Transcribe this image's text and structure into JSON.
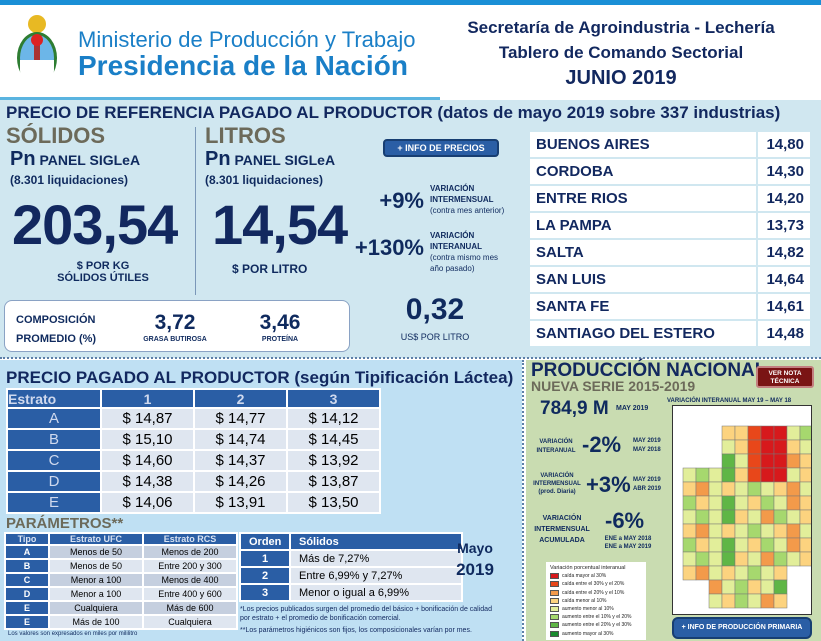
{
  "header": {
    "ministry": "Ministerio de Producción y Trabajo",
    "presidency": "Presidencia de la Nación",
    "secretariat": "Secretaría de Agroindustria - Lechería",
    "board": "Tablero de Comando Sectorial",
    "period": "JUNIO 2019"
  },
  "reference": {
    "title": "PRECIO DE REFERENCIA PAGADO AL PRODUCTOR (datos de mayo 2019 sobre 337 industrias)",
    "solids": {
      "label": "SÓLIDOS",
      "pn": "Pn",
      "panel": "PANEL SIGLeA",
      "count": "(8.301 liquidaciones)",
      "value": "203,54",
      "unit1": "$ POR KG",
      "unit2": "SÓLIDOS ÚTILES"
    },
    "liters": {
      "label": "LITROS",
      "pn": "Pn",
      "panel": "PANEL SIGLeA",
      "count": "(8.301 liquidaciones)",
      "value": "14,54",
      "unit": "$ POR LITRO"
    },
    "info_button": "+ INFO DE PRECIOS",
    "var_month": {
      "value": "+9%",
      "l1": "VARIACIÓN",
      "l2": "INTERMENSUAL",
      "l3": "(contra mes anterior)"
    },
    "var_year": {
      "value": "+130%",
      "l1": "VARIACIÓN",
      "l2": "INTERANUAL",
      "l3": "(contra mismo mes",
      "l4": "año pasado)"
    },
    "usd": {
      "value": "0,32",
      "unit": "US$ POR LITRO"
    },
    "composition": {
      "l1": "COMPOSICIÓN",
      "l2": "PROMEDIO (%)",
      "fat": "3,72",
      "fat_label": "GRASA BUTIROSA",
      "protein": "3,46",
      "protein_label": "PROTEÍNA"
    }
  },
  "provinces": [
    {
      "name": "BUENOS AIRES",
      "value": "14,80"
    },
    {
      "name": "CORDOBA",
      "value": "14,30"
    },
    {
      "name": "ENTRE RIOS",
      "value": "14,20"
    },
    {
      "name": "LA PAMPA",
      "value": "13,73"
    },
    {
      "name": "SALTA",
      "value": "14,82"
    },
    {
      "name": "SAN LUIS",
      "value": "14,64"
    },
    {
      "name": "SANTA FE",
      "value": "14,61"
    },
    {
      "name": "SANTIAGO DEL ESTERO",
      "value": "14,48"
    }
  ],
  "tipificacion": {
    "title": "PRECIO PAGADO AL PRODUCTOR (según Tipificación Láctea)",
    "headers": [
      "Estrato",
      "1",
      "2",
      "3"
    ],
    "rows": [
      [
        "A",
        "$ 14,87",
        "$ 14,77",
        "$ 14,12"
      ],
      [
        "B",
        "$ 15,10",
        "$ 14,74",
        "$ 14,45"
      ],
      [
        "C",
        "$ 14,60",
        "$ 14,37",
        "$ 13,92"
      ],
      [
        "D",
        "$ 14,38",
        "$ 14,26",
        "$ 13,87"
      ],
      [
        "E",
        "$ 14,06",
        "$ 13,91",
        "$ 13,50"
      ]
    ]
  },
  "parametros": {
    "title": "PARÁMETROS**",
    "headers": [
      "Tipo",
      "Estrato UFC",
      "Estrato RCS"
    ],
    "rows": [
      [
        "A",
        "Menos de 50",
        "Menos de 200"
      ],
      [
        "B",
        "Menos de 50",
        "Entre 200 y 300"
      ],
      [
        "C",
        "Menor a 100",
        "Menos de 400"
      ],
      [
        "D",
        "Menor a 100",
        "Entre 400 y 600"
      ],
      [
        "E",
        "Cualquiera",
        "Más de 600"
      ],
      [
        "E",
        "Más de 100",
        "Cualquiera"
      ]
    ],
    "note": "Los valores son expresados en miles por mililitro",
    "orden_headers": [
      "Orden",
      "Sólidos"
    ],
    "orden_rows": [
      [
        "1",
        "Más de 7,27%"
      ],
      [
        "2",
        "Entre 6,99% y 7,27%"
      ],
      [
        "3",
        "Menor o igual a 6,99%"
      ]
    ],
    "month": "Mayo",
    "year": "2019",
    "foot1": "*Los precios publicados surgen del promedio del básico + bonificación de calidad",
    "foot1b": "por estrato + el promedio de bonificación comercial.",
    "foot2": "**Los parámetros higiénicos son fijos, los composicionales varían por mes."
  },
  "produccion": {
    "title": "PRODUCCIÓN NACIONAL",
    "subtitle": "NUEVA SERIE 2015-2019",
    "note_button": "VER NOTA TÉCNICA",
    "volume": "784,9 M",
    "volume_period": "MAY 2019",
    "map_title": "VARIACIÓN INTERANUAL MAY 19 – MAY 18",
    "v1": {
      "l1": "VARIACIÓN",
      "l2": "INTERANUAL",
      "value": "-2%",
      "p1": "MAY 2019",
      "p2": "MAY 2018"
    },
    "v2": {
      "l1": "VARIACIÓN",
      "l2": "INTERMENSUAL",
      "l3": "(prod. Diaria)",
      "value": "+3%",
      "p1": "MAY 2019",
      "p2": "ABR 2019"
    },
    "v3": {
      "l1": "VARIACIÓN",
      "l2": "INTERMENSUAL",
      "l3": "ACUMULADA",
      "value": "-6%",
      "p1": "ENE a MAY 2018",
      "p2": "ENE a MAY 2019"
    },
    "legend_title": "Variación porcentual interanual",
    "legend": [
      {
        "label": "caída mayor al 30%",
        "color": "#d7191c"
      },
      {
        "label": "caída entre el 30% y el 20%",
        "color": "#e8471a"
      },
      {
        "label": "caída entre el 20% y el 10%",
        "color": "#f39a4a"
      },
      {
        "label": "caída menor al 10%",
        "color": "#fcd37f"
      },
      {
        "label": "aumento menor al 10%",
        "color": "#e2ee9a"
      },
      {
        "label": "aumento entre el 10% y el 20%",
        "color": "#a6d86e"
      },
      {
        "label": "aumento entre el 20% y el 30%",
        "color": "#5fb646"
      },
      {
        "label": "aumento mayor al 30%",
        "color": "#1a8a2e"
      }
    ],
    "info_button": "+ INFO DE PRODUCCIÓN PRIMARIA"
  }
}
